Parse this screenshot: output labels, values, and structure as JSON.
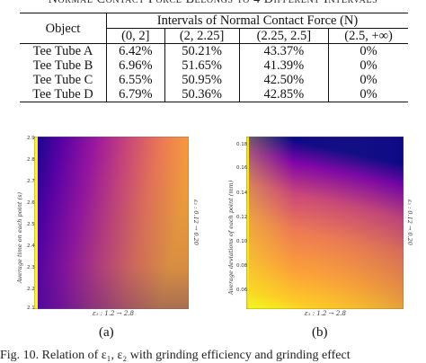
{
  "table": {
    "caption": "Normal Contact Force Belongs to 4 Different Intervals",
    "object_header": "Object",
    "group_header": "Intervals of Normal Contact Force (N)",
    "interval_headers": [
      "(0, 2]",
      "(2, 2.25]",
      "(2.25, 2.5]",
      "(2.5, +∞)"
    ],
    "rows": [
      {
        "object": "Tee Tube A",
        "values": [
          "6.42%",
          "50.21%",
          "43.37%",
          "0%"
        ]
      },
      {
        "object": "Tee Tube B",
        "values": [
          "6.96%",
          "51.65%",
          "41.39%",
          "0%"
        ]
      },
      {
        "object": "Tee Tube C",
        "values": [
          "6.55%",
          "50.95%",
          "42.50%",
          "0%"
        ]
      },
      {
        "object": "Tee Tube D",
        "values": [
          "6.79%",
          "50.36%",
          "42.85%",
          "0%"
        ]
      }
    ]
  },
  "figures": {
    "a": {
      "label": "(a)",
      "y_axis_label": "Average time on each point (s)",
      "y_ticks": [
        "2.9",
        "2.8",
        "2.7",
        "2.6",
        "2.5",
        "2.4",
        "2.3",
        "2.2",
        "2.1"
      ],
      "x_axis_label": "ε₁ : 1.2 → 2.8",
      "right_axis_label": "ε₂ : 0.12 → 0.20"
    },
    "b": {
      "label": "(b)",
      "y_axis_label": "Average deviations of each point (mm)",
      "y_ticks": [
        "0.18",
        "0.16",
        "0.14",
        "0.12",
        "0.10",
        "0.08",
        "0.06"
      ],
      "x_axis_label": "ε₁ : 1.2 → 2.8",
      "right_axis_label": "ε₂ : 0.12 → 0.20"
    }
  },
  "figure_caption": "Fig. 10.    Relation of ε₁, ε₂ with grinding efficiency and grinding effect",
  "colors": {
    "cmap_dark": "#0d0887",
    "cmap_mid": "#cc4778",
    "cmap_bright": "#f0f921"
  }
}
